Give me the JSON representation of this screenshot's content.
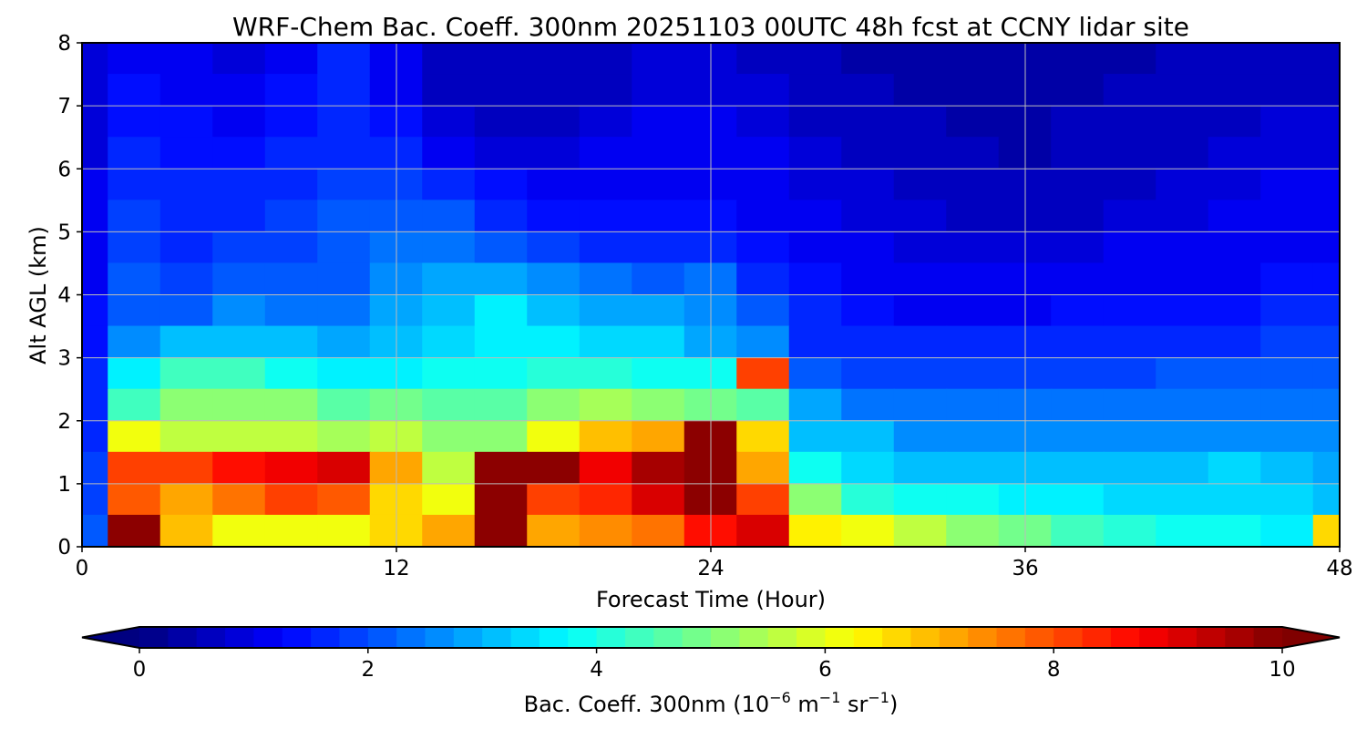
{
  "chart_data": {
    "type": "heatmap",
    "title": "WRF-Chem Bac. Coeff. 300nm  20251103 00UTC 48h fcst at CCNY lidar site",
    "xlabel": "Forecast Time (Hour)",
    "ylabel": "Alt AGL (km)",
    "xlim": [
      0,
      48
    ],
    "ylim": [
      0,
      8
    ],
    "xticks": [
      "0",
      "12",
      "24",
      "36",
      "48"
    ],
    "yticks": [
      "0",
      "1",
      "2",
      "3",
      "4",
      "5",
      "6",
      "7",
      "8"
    ],
    "grid": true,
    "colormap": "jet",
    "colorbar": {
      "label_main": "Bac. Coeff. 300nm  (10",
      "label_exp1": "−6",
      "label_mid": " m",
      "label_exp2": "−1",
      "label_mid2": " sr",
      "label_exp3": "−1",
      "label_end": ")",
      "range": [
        0,
        10
      ],
      "ticks": [
        "0",
        "2",
        "4",
        "6",
        "8",
        "10"
      ],
      "levels": 40,
      "extend": "both",
      "placement": "bottom"
    },
    "x_hours": [
      0,
      2,
      4,
      6,
      8,
      10,
      12,
      14,
      16,
      18,
      20,
      22,
      24,
      26,
      28,
      30,
      32,
      34,
      36,
      38,
      40,
      42,
      44,
      46,
      48
    ],
    "y_km": [
      7.75,
      7.25,
      6.75,
      6.25,
      5.75,
      5.25,
      4.75,
      4.25,
      3.75,
      3.25,
      2.75,
      2.25,
      1.75,
      1.25,
      0.75,
      0.25
    ],
    "values": [
      [
        0.8,
        1.2,
        1.0,
        0.9,
        1.2,
        1.5,
        1.0,
        0.6,
        0.5,
        0.5,
        0.6,
        0.8,
        0.8,
        0.7,
        0.5,
        0.4,
        0.3,
        0.3,
        0.3,
        0.4,
        0.4,
        0.5,
        0.6,
        0.7,
        0.7
      ],
      [
        0.8,
        1.3,
        1.1,
        1.0,
        1.3,
        1.5,
        1.2,
        0.7,
        0.6,
        0.6,
        0.7,
        0.9,
        0.9,
        0.8,
        0.6,
        0.5,
        0.4,
        0.3,
        0.3,
        0.4,
        0.5,
        0.5,
        0.6,
        0.7,
        0.7
      ],
      [
        0.8,
        1.4,
        1.3,
        1.2,
        1.4,
        1.6,
        1.4,
        0.9,
        0.7,
        0.7,
        0.8,
        1.0,
        1.0,
        0.9,
        0.7,
        0.6,
        0.5,
        0.4,
        0.4,
        0.5,
        0.5,
        0.6,
        0.7,
        0.8,
        0.8
      ],
      [
        0.9,
        1.5,
        1.4,
        1.4,
        1.5,
        1.7,
        1.6,
        1.2,
        0.9,
        0.9,
        1.0,
        1.1,
        1.1,
        1.0,
        0.8,
        0.7,
        0.6,
        0.5,
        0.4,
        0.5,
        0.6,
        0.7,
        0.8,
        0.9,
        0.9
      ],
      [
        1.0,
        1.6,
        1.5,
        1.6,
        1.6,
        1.8,
        1.8,
        1.6,
        1.3,
        1.1,
        1.1,
        1.2,
        1.2,
        1.1,
        0.9,
        0.8,
        0.7,
        0.6,
        0.5,
        0.6,
        0.7,
        0.8,
        0.9,
        1.0,
        1.0
      ],
      [
        1.0,
        1.8,
        1.6,
        1.7,
        1.8,
        2.0,
        2.1,
        2.0,
        1.7,
        1.4,
        1.3,
        1.3,
        1.3,
        1.2,
        1.0,
        0.9,
        0.8,
        0.7,
        0.6,
        0.7,
        0.8,
        0.9,
        1.0,
        1.1,
        1.1
      ],
      [
        1.1,
        1.9,
        1.7,
        1.8,
        1.9,
        2.1,
        2.3,
        2.3,
        2.2,
        1.9,
        1.7,
        1.6,
        1.6,
        1.4,
        1.1,
        1.0,
        0.9,
        0.8,
        0.8,
        0.9,
        1.0,
        1.0,
        1.1,
        1.2,
        1.2
      ],
      [
        1.2,
        2.0,
        1.9,
        2.0,
        2.0,
        2.2,
        2.6,
        2.8,
        2.9,
        2.6,
        2.3,
        2.2,
        2.3,
        1.7,
        1.3,
        1.1,
        1.0,
        1.0,
        1.0,
        1.1,
        1.1,
        1.2,
        1.2,
        1.3,
        1.3
      ],
      [
        1.3,
        2.2,
        2.2,
        2.5,
        2.3,
        2.4,
        2.8,
        3.2,
        3.5,
        3.2,
        2.8,
        2.8,
        2.6,
        2.0,
        1.5,
        1.3,
        1.2,
        1.2,
        1.2,
        1.3,
        1.3,
        1.4,
        1.4,
        1.5,
        1.5
      ],
      [
        1.4,
        2.6,
        3.0,
        3.2,
        3.0,
        2.8,
        3.0,
        3.4,
        3.7,
        3.6,
        3.4,
        3.3,
        2.9,
        2.6,
        1.7,
        1.5,
        1.5,
        1.5,
        1.5,
        1.5,
        1.6,
        1.6,
        1.7,
        1.8,
        1.8
      ],
      [
        1.5,
        3.5,
        4.3,
        4.3,
        3.8,
        3.5,
        3.6,
        3.9,
        3.8,
        4.2,
        4.0,
        3.9,
        3.8,
        8.0,
        2.2,
        1.9,
        1.9,
        1.9,
        1.9,
        1.9,
        1.9,
        2.0,
        2.0,
        2.0,
        2.0
      ],
      [
        1.6,
        4.3,
        5.0,
        5.2,
        5.0,
        4.6,
        4.8,
        4.7,
        4.6,
        5.0,
        5.4,
        5.2,
        4.9,
        4.5,
        2.8,
        2.4,
        2.3,
        2.3,
        2.3,
        2.3,
        2.3,
        2.3,
        2.4,
        2.4,
        2.3
      ],
      [
        1.7,
        6.0,
        5.6,
        5.6,
        5.7,
        5.4,
        5.6,
        5.0,
        5.0,
        6.2,
        6.8,
        7.0,
        10.0,
        6.5,
        3.2,
        3.0,
        2.7,
        2.6,
        2.6,
        2.6,
        2.6,
        2.6,
        2.6,
        2.7,
        2.5
      ],
      [
        1.8,
        8.0,
        8.2,
        8.5,
        8.8,
        9.0,
        7.0,
        5.6,
        10.0,
        10.0,
        8.8,
        9.5,
        10.0,
        7.0,
        3.8,
        3.4,
        3.1,
        3.0,
        3.0,
        3.0,
        3.0,
        3.2,
        3.3,
        3.2,
        2.8
      ],
      [
        1.9,
        7.8,
        7.0,
        7.6,
        8.0,
        7.8,
        6.5,
        6.2,
        10.0,
        8.2,
        8.4,
        9.0,
        10.5,
        8.0,
        5.0,
        4.2,
        3.8,
        3.8,
        3.6,
        3.5,
        3.3,
        3.3,
        3.3,
        3.3,
        3.0
      ],
      [
        2.0,
        10.5,
        6.8,
        6.0,
        6.0,
        6.2,
        6.6,
        7.2,
        10.0,
        7.2,
        7.3,
        7.6,
        8.5,
        9.0,
        6.3,
        6.0,
        5.6,
        5.2,
        4.8,
        4.4,
        4.0,
        3.8,
        3.8,
        3.7,
        6.5
      ]
    ]
  }
}
